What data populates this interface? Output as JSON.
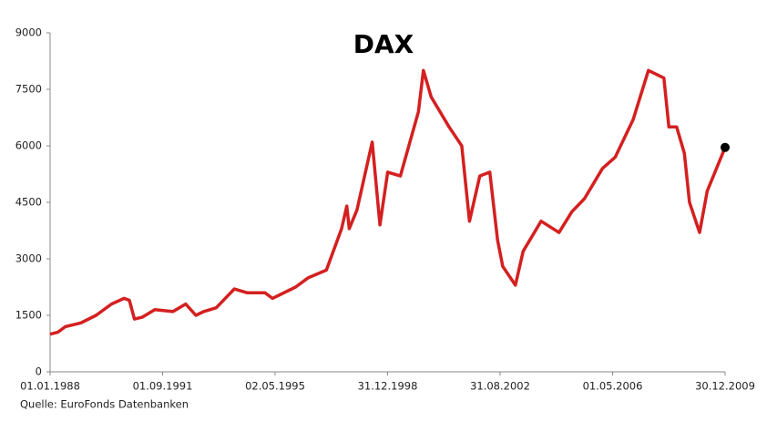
{
  "chart_data": {
    "type": "line",
    "title": "DAX",
    "source": "Quelle: EuroFonds Datenbanken",
    "x": [
      "01.01.1988",
      "01.04.1988",
      "01.07.1988",
      "01.01.1989",
      "01.07.1989",
      "01.01.1990",
      "01.06.1990",
      "01.08.1990",
      "01.10.1990",
      "01.01.1991",
      "01.06.1991",
      "01.01.1992",
      "01.06.1992",
      "01.10.1992",
      "01.01.1993",
      "01.06.1993",
      "01.01.1994",
      "01.06.1994",
      "01.01.1995",
      "01.04.1995",
      "01.01.1996",
      "01.06.1996",
      "01.01.1997",
      "01.07.1997",
      "01.09.1997",
      "01.10.1997",
      "01.01.1998",
      "01.07.1998",
      "01.10.1998",
      "01.01.1999",
      "01.06.1999",
      "01.01.2000",
      "01.03.2000",
      "01.06.2000",
      "01.01.2001",
      "01.06.2001",
      "01.09.2001",
      "01.01.2002",
      "01.05.2002",
      "01.08.2002",
      "01.10.2002",
      "01.03.2003",
      "01.06.2003",
      "01.01.2004",
      "01.08.2004",
      "01.01.2005",
      "01.06.2005",
      "01.01.2006",
      "01.06.2006",
      "01.01.2007",
      "01.07.2007",
      "01.01.2008",
      "01.03.2008",
      "01.06.2008",
      "01.09.2008",
      "01.11.2008",
      "01.03.2009",
      "01.06.2009",
      "30.12.2009"
    ],
    "series": [
      {
        "name": "DAX",
        "color": "#d42020",
        "values": [
          1000,
          1050,
          1200,
          1300,
          1500,
          1800,
          1950,
          1900,
          1400,
          1450,
          1650,
          1600,
          1800,
          1500,
          1600,
          1700,
          2200,
          2100,
          2100,
          1950,
          2250,
          2500,
          2700,
          3800,
          4400,
          3800,
          4300,
          6100,
          3900,
          5300,
          5200,
          6900,
          8000,
          7300,
          6500,
          6000,
          4000,
          5200,
          5300,
          3500,
          2800,
          2300,
          3200,
          4000,
          3700,
          4250,
          4600,
          5400,
          5700,
          6700,
          8000,
          7800,
          6500,
          6500,
          5800,
          4500,
          3700,
          4800,
          5957
        ]
      }
    ],
    "marker_color": "#000000",
    "xlim": [
      "01.01.1988",
      "30.12.2009"
    ],
    "xticks": [
      "01.01.1988",
      "01.09.1991",
      "02.05.1995",
      "31.12.1998",
      "31.08.2002",
      "01.05.2006",
      "30.12.2009"
    ],
    "ylim": [
      0,
      9000
    ],
    "yticks": [
      0,
      1500,
      3000,
      4500,
      6000,
      7500,
      9000
    ],
    "grid": false
  }
}
